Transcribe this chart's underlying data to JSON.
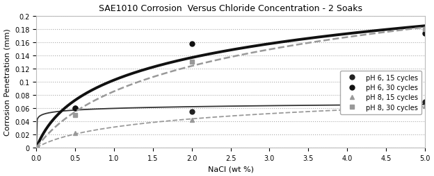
{
  "title": "SAE1010 Corrosion  Versus Chloride Concentration - 2 Soaks",
  "xlabel": "NaCl (wt %)",
  "ylabel": "Corrosion Penetration (mm)",
  "xlim": [
    0,
    5
  ],
  "ylim": [
    0,
    0.2
  ],
  "yticks": [
    0,
    0.02,
    0.04,
    0.06,
    0.08,
    0.1,
    0.12,
    0.14,
    0.16,
    0.18,
    0.2
  ],
  "xticks": [
    0,
    0.5,
    1,
    1.5,
    2,
    2.5,
    3,
    3.5,
    4,
    4.5,
    5
  ],
  "series": [
    {
      "label": "pH 6, 15 cycles",
      "x": [
        0,
        0.5,
        2,
        5
      ],
      "y": [
        0,
        0.06,
        0.055,
        0.07
      ],
      "color": "#333333",
      "linewidth": 1.3,
      "linestyle": "-",
      "marker": "o",
      "markersize": 5,
      "markerfacecolor": "#222222",
      "markeredgecolor": "#222222"
    },
    {
      "label": "pH 6, 30 cycles",
      "x": [
        0,
        0.5,
        2,
        5
      ],
      "y": [
        0,
        0.06,
        0.158,
        0.174
      ],
      "color": "#111111",
      "linewidth": 2.8,
      "linestyle": "-",
      "marker": "o",
      "markersize": 5,
      "markerfacecolor": "#111111",
      "markeredgecolor": "#111111"
    },
    {
      "label": "pH 8, 15 cycles",
      "x": [
        0,
        0.5,
        2,
        5
      ],
      "y": [
        0,
        0.022,
        0.042,
        0.063
      ],
      "color": "#999999",
      "linewidth": 1.3,
      "linestyle": "--",
      "marker": "^",
      "markersize": 5,
      "markerfacecolor": "#999999",
      "markeredgecolor": "#999999"
    },
    {
      "label": "pH 8, 30 cycles",
      "x": [
        0,
        0.5,
        2,
        5
      ],
      "y": [
        0,
        0.05,
        0.13,
        0.18
      ],
      "color": "#999999",
      "linewidth": 1.8,
      "linestyle": "--",
      "marker": "s",
      "markersize": 5,
      "markerfacecolor": "#999999",
      "markeredgecolor": "#999999"
    }
  ],
  "bg_color": "#ffffff",
  "grid_color": "#aaaaaa"
}
